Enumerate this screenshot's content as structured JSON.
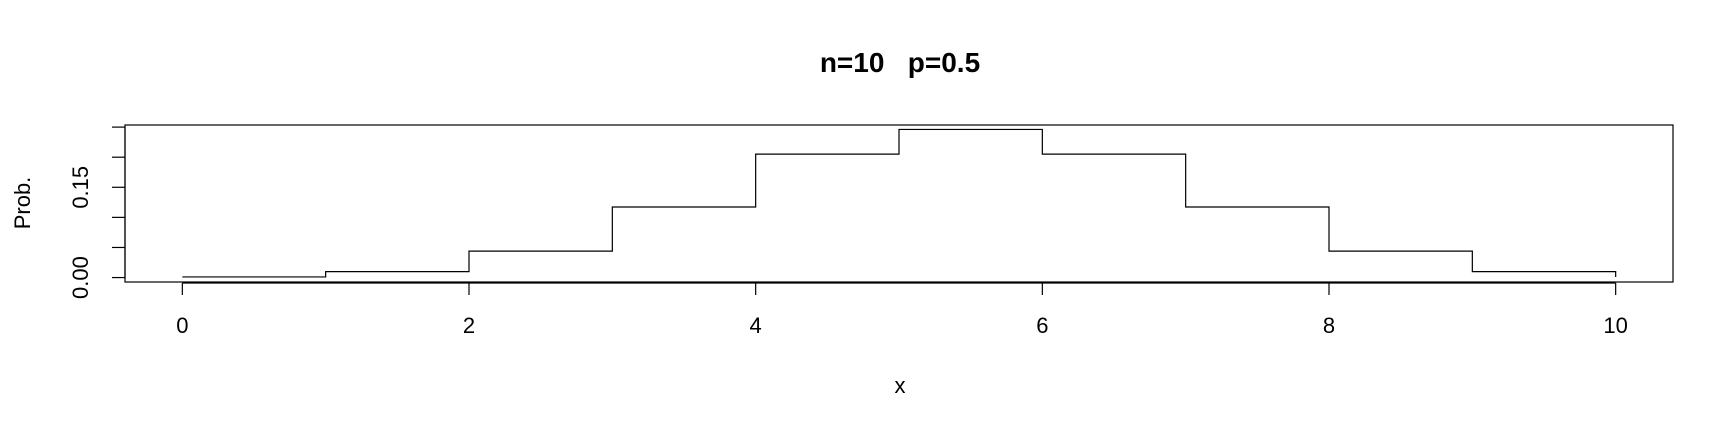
{
  "chart_data": {
    "type": "line",
    "step": true,
    "title": "n=10   p=0.5",
    "xlabel": "x",
    "ylabel": "Prob.",
    "x_ticks": [
      0,
      2,
      4,
      6,
      8,
      10
    ],
    "x_tick_labels": [
      "0",
      "2",
      "4",
      "6",
      "8",
      "10"
    ],
    "y_ticks": [
      0,
      0.05,
      0.1,
      0.15,
      0.2,
      0.25
    ],
    "y_tick_labels": [
      "0.00",
      "",
      "",
      "0.15",
      "",
      ""
    ],
    "xlim": [
      -0.4,
      10.4
    ],
    "ylim": [
      -0.00738,
      0.25348
    ],
    "x": [
      0,
      1,
      2,
      3,
      4,
      5,
      6,
      7,
      8,
      9,
      10
    ],
    "values": [
      0.001,
      0.0098,
      0.0439,
      0.1172,
      0.2051,
      0.2461,
      0.2051,
      0.1172,
      0.0439,
      0.0098,
      0.001
    ],
    "grid": false
  }
}
